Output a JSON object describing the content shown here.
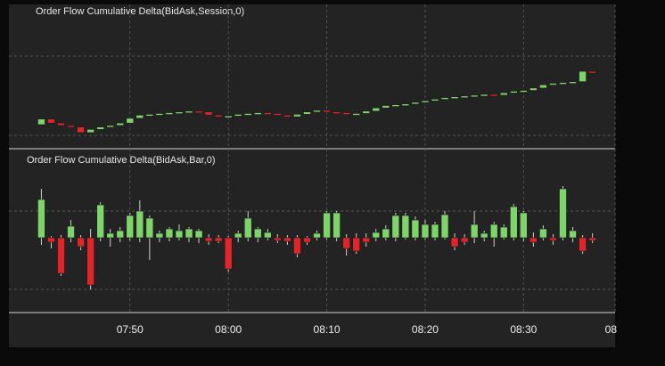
{
  "chart_data": [
    {
      "type": "candlestick",
      "title": "Order Flow Cumulative Delta(BidAsk,Session,0)",
      "up_color": "#7fd36b",
      "down_color": "#e0262a",
      "xlim": [
        37.7,
        99.3
      ],
      "ylim": [
        0,
        160
      ],
      "x": [
        41,
        42,
        43,
        44,
        45,
        46,
        47,
        48,
        49,
        50,
        51,
        52,
        53,
        54,
        55,
        56,
        57,
        58,
        59,
        60,
        61,
        62,
        63,
        64,
        65,
        66,
        67,
        68,
        69,
        70,
        71,
        72,
        73,
        74,
        75,
        76,
        77,
        78,
        79,
        80,
        81,
        82,
        83,
        84,
        85,
        86,
        87,
        88,
        89,
        90,
        91,
        92,
        93,
        94,
        95,
        96,
        97
      ],
      "open": [
        28,
        35,
        30,
        27,
        25,
        18,
        22,
        25,
        27,
        30,
        36,
        40,
        41,
        42,
        43,
        44,
        45,
        44,
        40,
        38,
        39,
        41,
        42,
        43,
        42,
        40,
        38,
        41,
        44,
        46,
        44,
        43,
        42,
        42,
        45,
        49,
        52,
        53,
        54,
        56,
        58,
        60,
        62,
        63,
        64,
        65,
        66,
        65,
        68,
        70,
        71,
        74,
        78,
        80,
        81,
        82,
        95
      ],
      "close": [
        35,
        30,
        27,
        25,
        18,
        22,
        25,
        27,
        30,
        36,
        40,
        41,
        42,
        43,
        44,
        45,
        44,
        40,
        38,
        39,
        41,
        42,
        43,
        42,
        40,
        38,
        41,
        44,
        46,
        44,
        43,
        42,
        42,
        45,
        49,
        52,
        53,
        54,
        56,
        58,
        60,
        62,
        63,
        64,
        65,
        66,
        65,
        68,
        70,
        71,
        74,
        78,
        80,
        81,
        82,
        95,
        94
      ]
    },
    {
      "type": "candlestick",
      "title": "Order Flow Cumulative Delta(BidAsk,Bar,0)",
      "up_color": "#7fd36b",
      "down_color": "#e0262a",
      "xlim": [
        37.7,
        99.3
      ],
      "ylim": [
        -83,
        95
      ],
      "xticks": [
        {
          "value": 50,
          "label": "07:50"
        },
        {
          "value": 60,
          "label": "08:00"
        },
        {
          "value": 70,
          "label": "08:10"
        },
        {
          "value": 80,
          "label": "08:20"
        },
        {
          "value": 90,
          "label": "08:30"
        },
        {
          "value": 100,
          "label": "08"
        }
      ],
      "x": [
        41,
        42,
        43,
        44,
        45,
        46,
        47,
        48,
        49,
        50,
        51,
        52,
        53,
        54,
        55,
        56,
        57,
        58,
        59,
        60,
        61,
        62,
        63,
        64,
        65,
        66,
        67,
        68,
        69,
        70,
        71,
        72,
        73,
        74,
        75,
        76,
        77,
        78,
        79,
        80,
        81,
        82,
        83,
        84,
        85,
        86,
        87,
        88,
        89,
        90,
        91,
        92,
        93,
        94,
        95,
        96,
        97
      ],
      "open": [
        0,
        0,
        0,
        0,
        0,
        0,
        0,
        0,
        0,
        0,
        0,
        0,
        0,
        0,
        0,
        0,
        0,
        0,
        0,
        0,
        0,
        0,
        0,
        0,
        0,
        0,
        0,
        0,
        0,
        0,
        0,
        0,
        0,
        0,
        0,
        0,
        0,
        0,
        0,
        0,
        0,
        0,
        0,
        0,
        0,
        0,
        0,
        0,
        0,
        0,
        0,
        0,
        0,
        0,
        0,
        0,
        0
      ],
      "high": [
        55,
        2,
        3,
        20,
        3,
        10,
        40,
        10,
        12,
        28,
        42,
        25,
        8,
        12,
        15,
        12,
        10,
        4,
        3,
        2,
        8,
        30,
        12,
        10,
        4,
        3,
        3,
        2,
        8,
        30,
        30,
        4,
        5,
        5,
        10,
        14,
        28,
        28,
        24,
        20,
        18,
        30,
        5,
        4,
        30,
        8,
        18,
        15,
        38,
        30,
        6,
        14,
        4,
        58,
        12,
        3,
        5
      ],
      "low": [
        -8,
        -12,
        -43,
        -5,
        -14,
        -58,
        -4,
        -10,
        -5,
        -3,
        -5,
        -25,
        -5,
        -4,
        -3,
        -5,
        -6,
        -8,
        -6,
        -38,
        -5,
        -4,
        -5,
        -3,
        -6,
        -8,
        -22,
        -8,
        -3,
        -2,
        -4,
        -20,
        -18,
        -10,
        -4,
        -3,
        -4,
        -2,
        -3,
        -2,
        -3,
        -2,
        -14,
        -8,
        -6,
        -4,
        -10,
        -2,
        -3,
        -4,
        -10,
        -3,
        -8,
        -3,
        -5,
        -18,
        -6
      ],
      "close": [
        43,
        -5,
        -40,
        13,
        -10,
        -53,
        37,
        5,
        8,
        25,
        30,
        22,
        5,
        10,
        8,
        10,
        8,
        -4,
        -4,
        -35,
        5,
        22,
        10,
        6,
        -3,
        -4,
        -18,
        -5,
        5,
        28,
        28,
        -12,
        -15,
        -5,
        6,
        10,
        25,
        25,
        20,
        15,
        15,
        26,
        -10,
        -5,
        15,
        5,
        15,
        12,
        35,
        28,
        -5,
        10,
        -3,
        55,
        8,
        -15,
        -3
      ]
    }
  ]
}
